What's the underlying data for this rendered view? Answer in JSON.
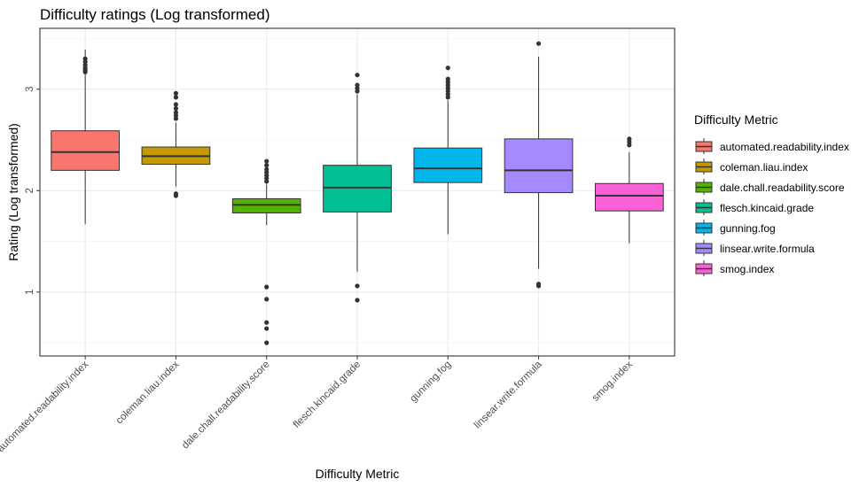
{
  "chart_data": {
    "type": "box",
    "title": "Difficulty ratings (Log transformed)",
    "xlabel": "Difficulty Metric",
    "ylabel": "Rating (Log transformed)",
    "ylim": [
      0.37,
      3.6
    ],
    "yticks": [
      1,
      2,
      3
    ],
    "grid": true,
    "legend": {
      "title": "Difficulty Metric",
      "position": "right"
    },
    "categories": [
      "automated.readability.index",
      "coleman.liau.index",
      "dale.chall.readability.score",
      "flesch.kincaid.grade",
      "gunning.fog",
      "linsear.write.formula",
      "smog.index"
    ],
    "colors": [
      "#F8766D",
      "#C49A00",
      "#53B400",
      "#00C094",
      "#00B6EB",
      "#A58AFF",
      "#FB61D7"
    ],
    "boxes": [
      {
        "whisker_low": 1.67,
        "q1": 2.2,
        "median": 2.38,
        "q3": 2.59,
        "whisker_high": 3.39,
        "outliers": [
          3.17,
          3.19,
          3.21,
          3.24,
          3.27,
          3.3
        ]
      },
      {
        "whisker_low": 2.04,
        "q1": 2.26,
        "median": 2.34,
        "q3": 2.43,
        "whisker_high": 2.67,
        "outliers": [
          1.95,
          1.97,
          2.71,
          2.74,
          2.77,
          2.81,
          2.85,
          2.92,
          2.96
        ]
      },
      {
        "whisker_low": 1.66,
        "q1": 1.78,
        "median": 1.86,
        "q3": 1.92,
        "whisker_high": 2.06,
        "outliers": [
          0.5,
          0.64,
          0.7,
          0.93,
          1.05,
          2.09,
          2.12,
          2.15,
          2.18,
          2.21,
          2.25,
          2.29
        ]
      },
      {
        "whisker_low": 1.2,
        "q1": 1.79,
        "median": 2.03,
        "q3": 2.25,
        "whisker_high": 2.95,
        "outliers": [
          0.92,
          1.06,
          2.98,
          3.01,
          3.04,
          3.14
        ]
      },
      {
        "whisker_low": 1.57,
        "q1": 2.08,
        "median": 2.22,
        "q3": 2.42,
        "whisker_high": 2.89,
        "outliers": [
          2.92,
          2.95,
          2.98,
          3.01,
          3.04,
          3.07,
          3.1,
          3.21
        ]
      },
      {
        "whisker_low": 1.23,
        "q1": 1.98,
        "median": 2.2,
        "q3": 2.51,
        "whisker_high": 3.32,
        "outliers": [
          1.06,
          1.08,
          3.45
        ]
      },
      {
        "whisker_low": 1.48,
        "q1": 1.8,
        "median": 1.95,
        "q3": 2.07,
        "whisker_high": 2.38,
        "outliers": [
          2.45,
          2.48,
          2.51
        ]
      }
    ]
  }
}
